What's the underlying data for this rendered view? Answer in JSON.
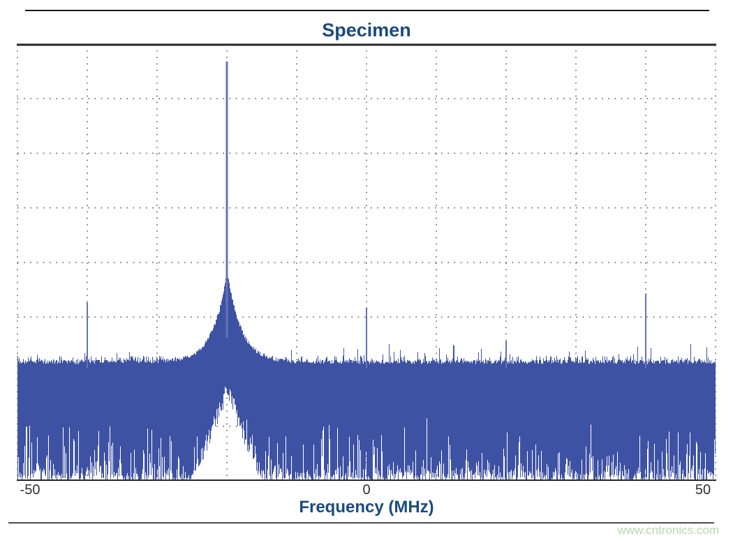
{
  "page": {
    "watermark": "www.cntronics.com",
    "watermark_color": "#b5d9ad",
    "background": "#ffffff"
  },
  "colors": {
    "title_text": "#1b4b7e",
    "axis_label_text": "#1b4b7e",
    "tick_text": "#303030",
    "grid": "#4f4f4f",
    "plot_border": "#262626",
    "noise_fill": "#3e52a4",
    "spur_line": "#6371b6",
    "carrier_line": "#6673b8",
    "top_rule": "#1a1a1a",
    "bottom_rule": "#4d4d4d"
  },
  "chart_data": {
    "type": "line",
    "title": "Specimen",
    "xlabel": "Frequency (MHz)",
    "ylabel": "",
    "xlim": [
      -50,
      50
    ],
    "xticks": [
      -50,
      0,
      50
    ],
    "xtick_labels": [
      "-50",
      "0",
      "50"
    ],
    "x_grid_step_mhz": 10,
    "y_grid_divisions": 8,
    "grid": "dotted",
    "legend": "none",
    "series_description": "Wideband noisy power spectrum: dense noise floor band across -50..50 MHz with a dominant carrier at -20 MHz (phase-noise skirt above the floor and a clean white notch below it) plus small spurs at -40, 0, +20 and +40 MHz.",
    "noise_band": {
      "top_frac_mean": 0.723,
      "top_jitter_frac": 0.022,
      "bottom_frac": 1.0,
      "white_streak_max_frac": 0.14,
      "up_spike_prob": 0.06
    },
    "peaks": [
      {
        "freq_mhz": -40,
        "kind": "spur",
        "top_frac": 0.592
      },
      {
        "freq_mhz": -20,
        "kind": "carrier",
        "top_frac": 0.04,
        "skirt_rise_frac": 0.208,
        "skirt_width_mhz": 2.0,
        "notch_top_frac": 0.795
      },
      {
        "freq_mhz": 0,
        "kind": "spur",
        "top_frac": 0.603
      },
      {
        "freq_mhz": 20,
        "kind": "spur",
        "top_frac": 0.68
      },
      {
        "freq_mhz": 40,
        "kind": "spur",
        "top_frac": 0.571
      }
    ],
    "render_seed": 20240717
  }
}
